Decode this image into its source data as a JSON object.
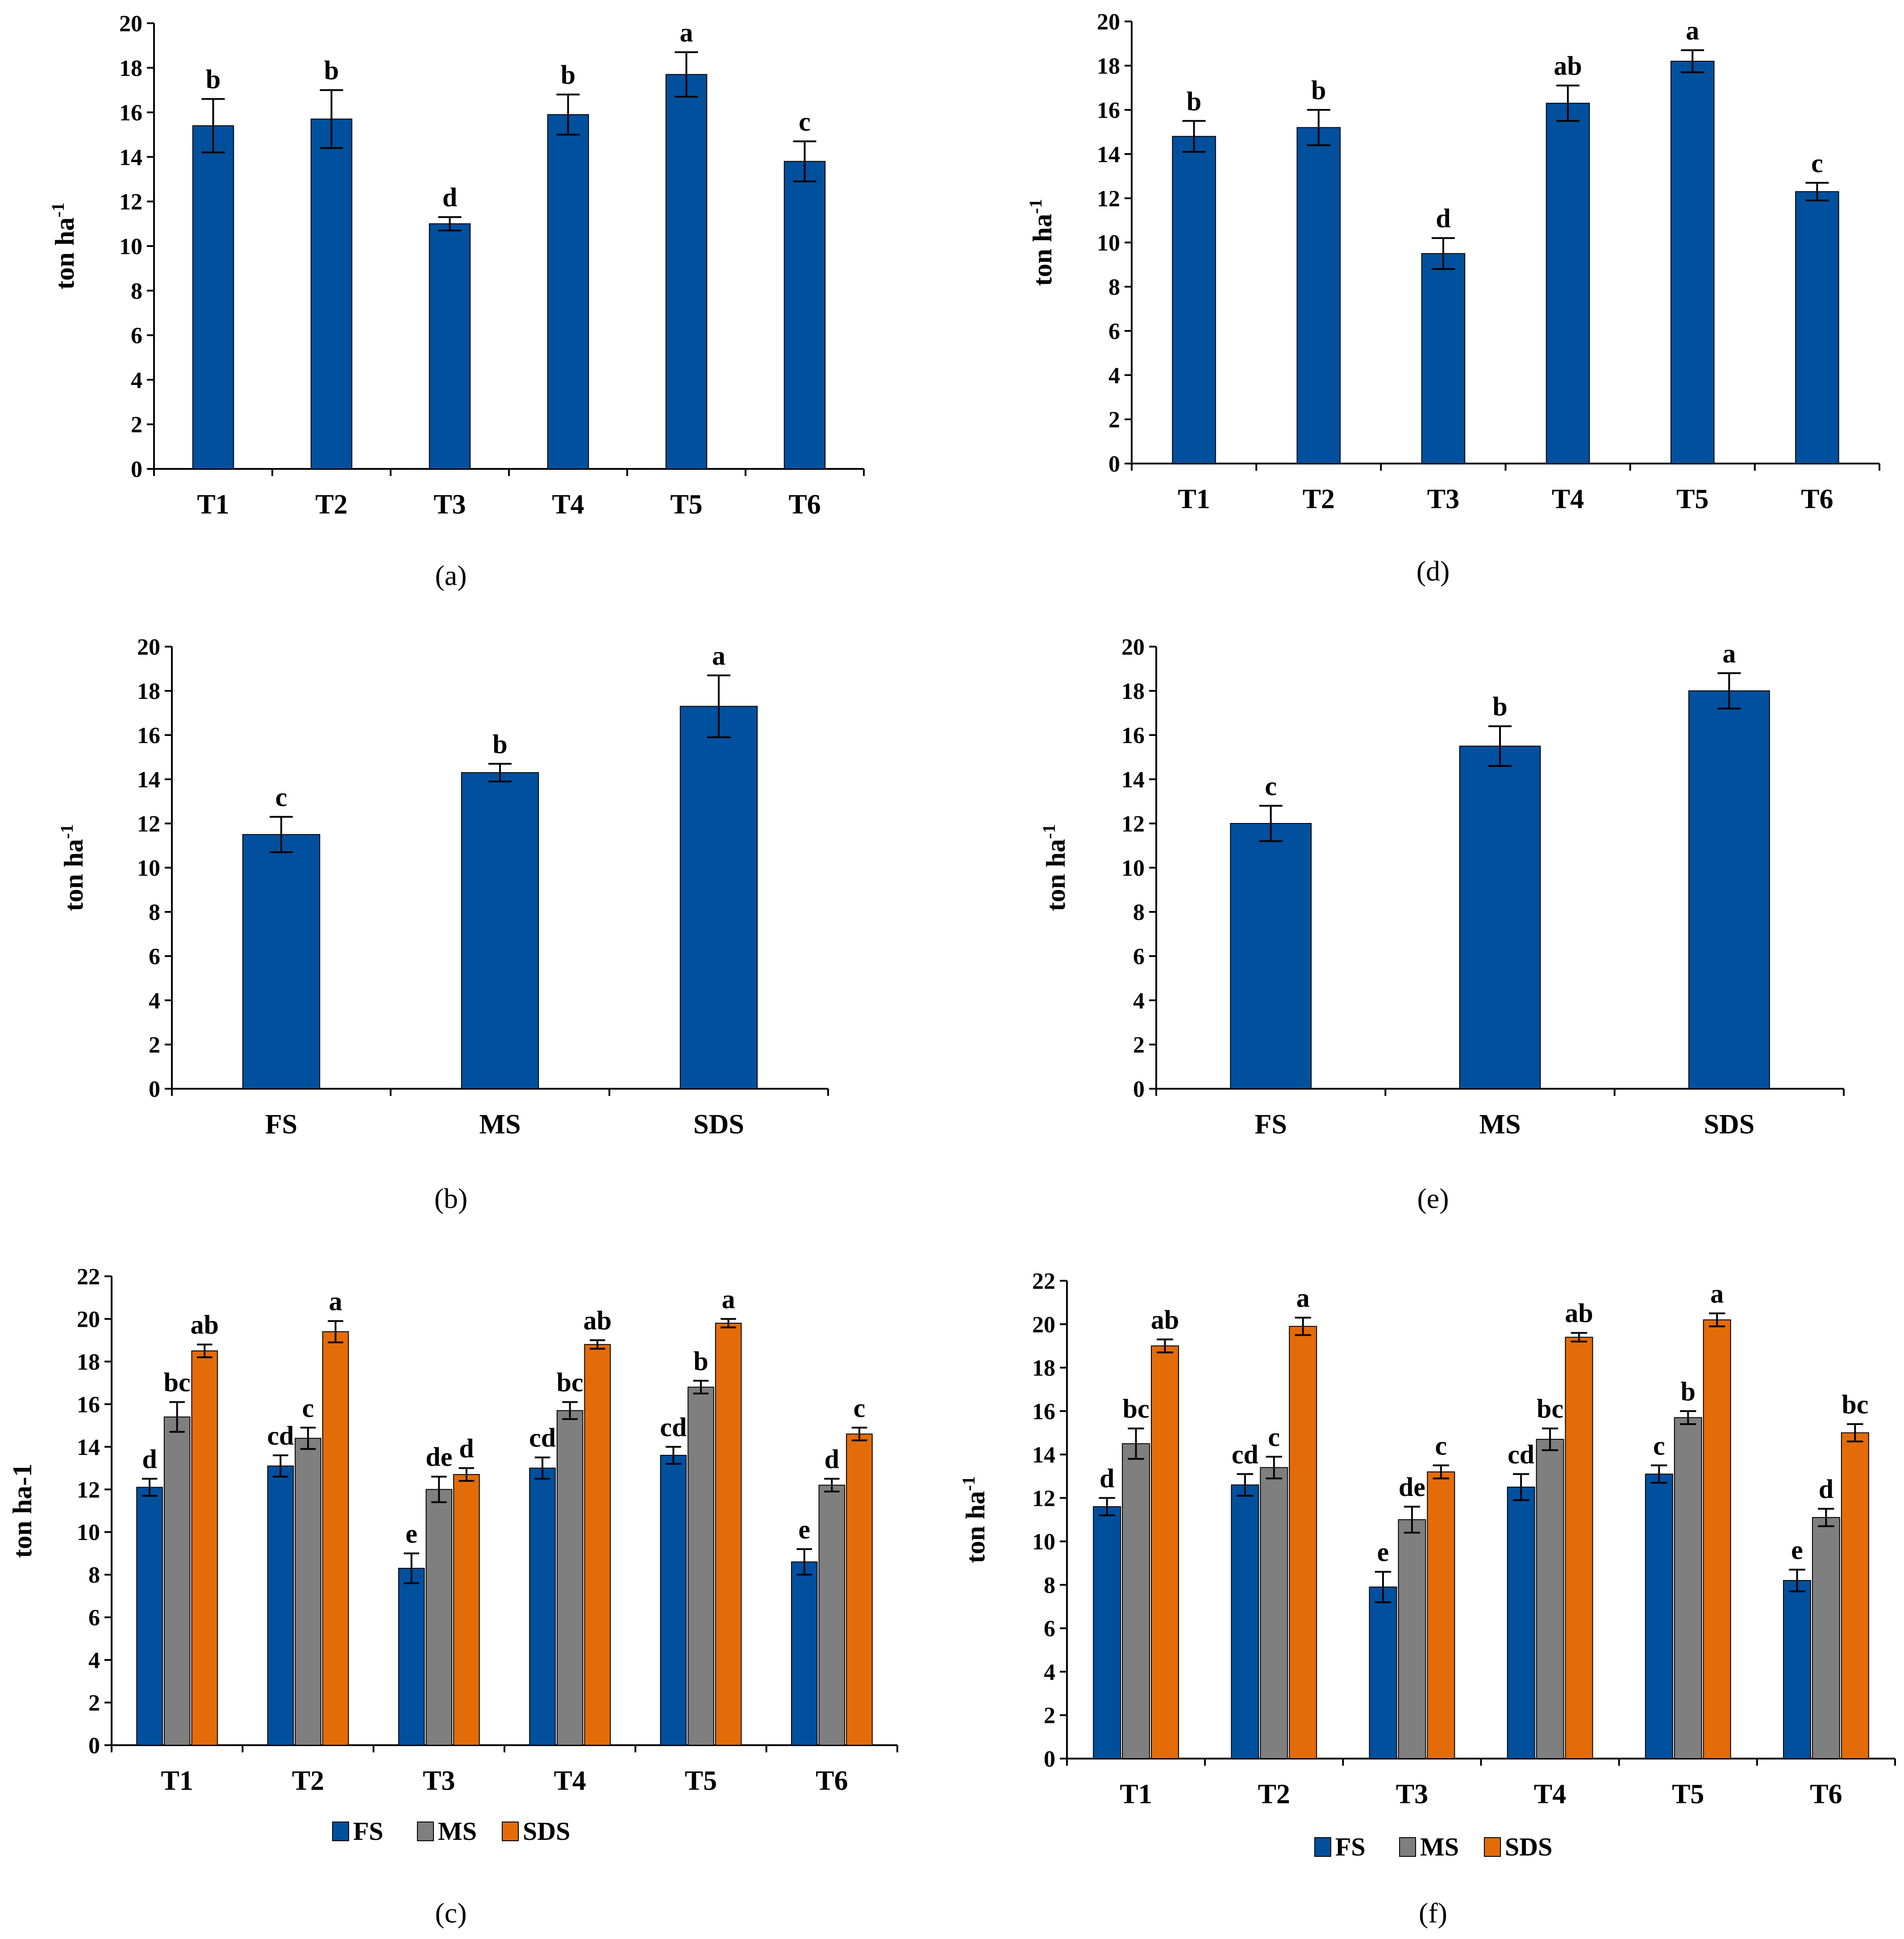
{
  "chart_data": [
    {
      "id": "a",
      "panel_label": "(a)",
      "type": "bar",
      "ylabel": "ton ha",
      "ylabel_sup": "-1",
      "ylim": [
        0,
        20
      ],
      "ytick_step": 2,
      "categories": [
        "T1",
        "T2",
        "T3",
        "T4",
        "T5",
        "T6"
      ],
      "series": [
        {
          "name": "value",
          "color": "#00509E",
          "values": [
            15.4,
            15.7,
            11.0,
            15.9,
            17.7,
            13.8
          ],
          "errors": [
            1.2,
            1.3,
            0.3,
            0.9,
            1.0,
            0.9
          ],
          "letters": [
            "b",
            "b",
            "d",
            "b",
            "a",
            "c"
          ]
        }
      ],
      "legend": false
    },
    {
      "id": "d",
      "panel_label": "(d)",
      "type": "bar",
      "ylabel": "ton ha",
      "ylabel_sup": "-1",
      "ylim": [
        0,
        20
      ],
      "ytick_step": 2,
      "categories": [
        "T1",
        "T2",
        "T3",
        "T4",
        "T5",
        "T6"
      ],
      "series": [
        {
          "name": "value",
          "color": "#00509E",
          "values": [
            14.8,
            15.2,
            9.5,
            16.3,
            18.2,
            12.3
          ],
          "errors": [
            0.7,
            0.8,
            0.7,
            0.8,
            0.5,
            0.4
          ],
          "letters": [
            "b",
            "b",
            "d",
            "ab",
            "a",
            "c"
          ]
        }
      ],
      "legend": false
    },
    {
      "id": "b",
      "panel_label": "(b)",
      "type": "bar",
      "ylabel": "ton ha",
      "ylabel_sup": "-1",
      "ylim": [
        0,
        20
      ],
      "ytick_step": 2,
      "categories": [
        "FS",
        "MS",
        "SDS"
      ],
      "series": [
        {
          "name": "value",
          "color": "#00509E",
          "values": [
            11.5,
            14.3,
            17.3
          ],
          "errors": [
            0.8,
            0.4,
            1.4
          ],
          "letters": [
            "c",
            "b",
            "a"
          ]
        }
      ],
      "legend": false
    },
    {
      "id": "e",
      "panel_label": "(e)",
      "type": "bar",
      "ylabel": "ton ha",
      "ylabel_sup": "-1",
      "ylim": [
        0,
        20
      ],
      "ytick_step": 2,
      "categories": [
        "FS",
        "MS",
        "SDS"
      ],
      "series": [
        {
          "name": "value",
          "color": "#00509E",
          "values": [
            12.0,
            15.5,
            18.0
          ],
          "errors": [
            0.8,
            0.9,
            0.8
          ],
          "letters": [
            "c",
            "b",
            "a"
          ]
        }
      ],
      "legend": false
    },
    {
      "id": "c",
      "panel_label": "(c)",
      "type": "bar",
      "ylabel": "ton ha-1",
      "ylabel_sup": "",
      "ylim": [
        0,
        22
      ],
      "ytick_step": 2,
      "categories": [
        "T1",
        "T2",
        "T3",
        "T4",
        "T5",
        "T6"
      ],
      "series": [
        {
          "name": "FS",
          "color": "#00509E",
          "values": [
            12.1,
            13.1,
            8.3,
            13.0,
            13.6,
            8.6
          ],
          "errors": [
            0.4,
            0.5,
            0.7,
            0.5,
            0.4,
            0.6
          ],
          "letters": [
            "d",
            "cd",
            "e",
            "cd",
            "cd",
            "e"
          ]
        },
        {
          "name": "MS",
          "color": "#7F7F7F",
          "values": [
            15.4,
            14.4,
            12.0,
            15.7,
            16.8,
            12.2
          ],
          "errors": [
            0.7,
            0.5,
            0.6,
            0.4,
            0.3,
            0.3
          ],
          "letters": [
            "bc",
            "c",
            "de",
            "bc",
            "b",
            "d"
          ]
        },
        {
          "name": "SDS",
          "color": "#E36C09",
          "values": [
            18.5,
            19.4,
            12.7,
            18.8,
            19.8,
            14.6
          ],
          "errors": [
            0.3,
            0.5,
            0.3,
            0.2,
            0.2,
            0.3
          ],
          "letters": [
            "ab",
            "a",
            "d",
            "ab",
            "a",
            "c"
          ]
        }
      ],
      "legend": true
    },
    {
      "id": "f",
      "panel_label": "(f)",
      "type": "bar",
      "ylabel": "ton ha",
      "ylabel_sup": "-1",
      "ylim": [
        0,
        22
      ],
      "ytick_step": 2,
      "categories": [
        "T1",
        "T2",
        "T3",
        "T4",
        "T5",
        "T6"
      ],
      "series": [
        {
          "name": "FS",
          "color": "#00509E",
          "values": [
            11.6,
            12.6,
            7.9,
            12.5,
            13.1,
            8.2
          ],
          "errors": [
            0.4,
            0.5,
            0.7,
            0.6,
            0.4,
            0.5
          ],
          "letters": [
            "d",
            "cd",
            "e",
            "cd",
            "c",
            "e"
          ]
        },
        {
          "name": "MS",
          "color": "#7F7F7F",
          "values": [
            14.5,
            13.4,
            11.0,
            14.7,
            15.7,
            11.1
          ],
          "errors": [
            0.7,
            0.5,
            0.6,
            0.5,
            0.3,
            0.4
          ],
          "letters": [
            "bc",
            "c",
            "de",
            "bc",
            "b",
            "d"
          ]
        },
        {
          "name": "SDS",
          "color": "#E36C09",
          "values": [
            19.0,
            19.9,
            13.2,
            19.4,
            20.2,
            15.0
          ],
          "errors": [
            0.3,
            0.4,
            0.3,
            0.2,
            0.3,
            0.4
          ],
          "letters": [
            "ab",
            "a",
            "c",
            "ab",
            "a",
            "bc"
          ]
        }
      ],
      "legend": true
    }
  ]
}
